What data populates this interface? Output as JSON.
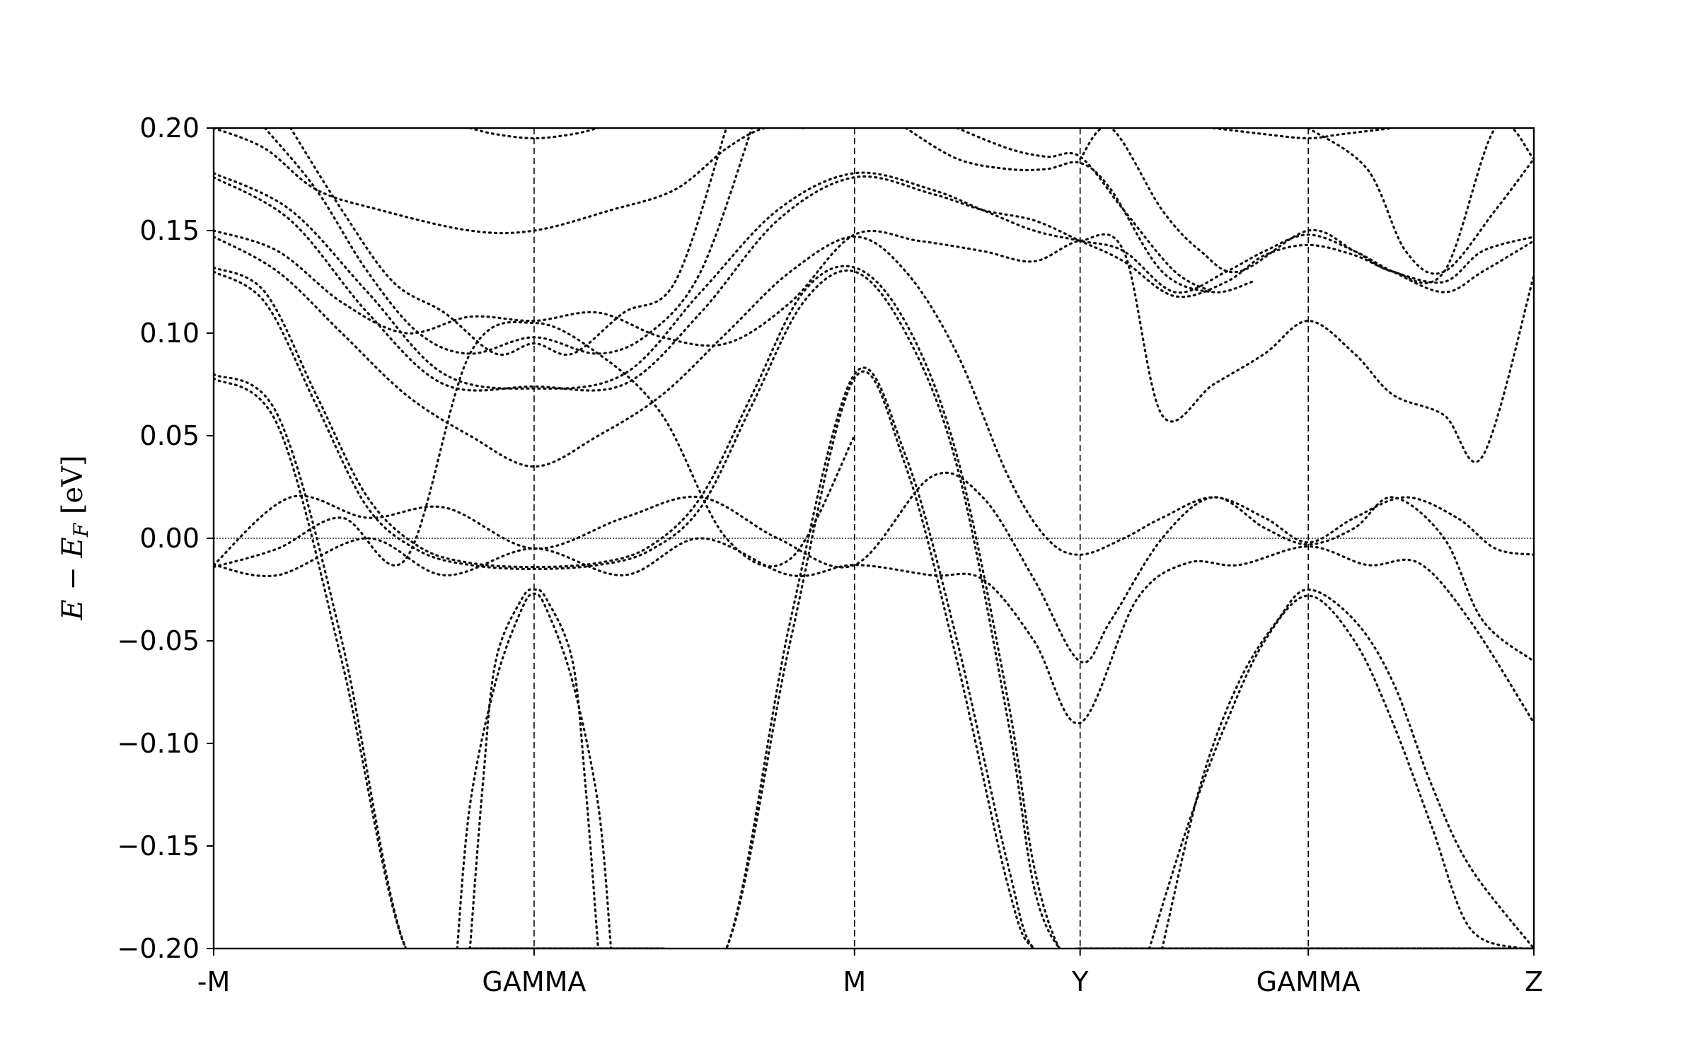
{
  "chart_data": {
    "type": "line",
    "title": "",
    "xlabel": "",
    "ylabel_parts": {
      "main": "E − E",
      "sub": "F",
      "unit": " [eV]"
    },
    "ylim": [
      -0.2,
      0.2
    ],
    "yticks": [
      -0.2,
      -0.15,
      -0.1,
      -0.05,
      0.0,
      0.05,
      0.1,
      0.15,
      0.2
    ],
    "ytick_labels": [
      "−0.20",
      "−0.15",
      "−0.10",
      "−0.05",
      "0.00",
      "0.05",
      "0.10",
      "0.15",
      "0.20"
    ],
    "xlim": [
      0,
      5.15
    ],
    "kpoints": [
      {
        "label": "-M",
        "x": 0.0
      },
      {
        "label": "GAMMA",
        "x": 1.25
      },
      {
        "label": "M",
        "x": 2.5
      },
      {
        "label": "Y",
        "x": 3.38
      },
      {
        "label": "GAMMA",
        "x": 4.27
      },
      {
        "label": "Z",
        "x": 5.15
      }
    ],
    "fermi_level": 0.0,
    "grid": false,
    "legend": "none",
    "line_style": "dotted",
    "line_color": "#111111",
    "series": [
      {
        "x": [
          0,
          0.25,
          0.5,
          0.75,
          1.0,
          1.25,
          1.5,
          1.75,
          2.0,
          2.25,
          2.5,
          2.7,
          2.9,
          3.1,
          3.2,
          3.38,
          3.6,
          3.8,
          4.0,
          4.27,
          4.5,
          4.7,
          4.9,
          5.15
        ],
        "y": [
          0.08,
          0.06,
          -0.05,
          -0.2,
          -0.2,
          -0.2,
          -0.2,
          -0.2,
          -0.2,
          -0.04,
          0.08,
          0.04,
          -0.05,
          -0.16,
          -0.2,
          -0.2,
          -0.2,
          -0.2,
          -0.2,
          -0.2,
          -0.2,
          -0.2,
          -0.2,
          -0.2
        ]
      },
      {
        "x": [
          0,
          0.25,
          0.5,
          0.75,
          1.0,
          1.25,
          1.5,
          1.75,
          2.0,
          2.25,
          2.5,
          2.7,
          2.9,
          3.1,
          3.2,
          3.38,
          3.6,
          3.8,
          4.0,
          4.27,
          4.5,
          4.7,
          4.9,
          5.15
        ],
        "y": [
          0.078,
          0.055,
          -0.06,
          -0.2,
          -0.2,
          -0.2,
          -0.2,
          -0.2,
          -0.2,
          -0.05,
          0.078,
          0.035,
          -0.06,
          -0.17,
          -0.2,
          -0.2,
          -0.2,
          -0.2,
          -0.2,
          -0.2,
          -0.2,
          -0.2,
          -0.2,
          -0.2
        ]
      },
      {
        "x": [
          0,
          0.2,
          0.4,
          0.6,
          0.8,
          1.0,
          1.25,
          1.5,
          1.7,
          1.9,
          2.1,
          2.3,
          2.5,
          2.7,
          2.9,
          3.1,
          3.2,
          3.3,
          3.38
        ],
        "y": [
          0.132,
          0.12,
          0.07,
          0.02,
          -0.004,
          -0.012,
          -0.014,
          -0.012,
          -0.004,
          0.02,
          0.07,
          0.12,
          0.132,
          0.105,
          0.04,
          -0.08,
          -0.16,
          -0.2,
          -0.2
        ]
      },
      {
        "x": [
          0,
          0.2,
          0.4,
          0.6,
          0.8,
          1.0,
          1.25,
          1.5,
          1.7,
          1.9,
          2.1,
          2.3,
          2.5,
          2.7,
          2.9,
          3.1,
          3.2,
          3.3,
          3.38
        ],
        "y": [
          0.13,
          0.115,
          0.065,
          0.015,
          -0.006,
          -0.013,
          -0.015,
          -0.013,
          -0.006,
          0.015,
          0.065,
          0.115,
          0.13,
          0.1,
          0.035,
          -0.09,
          -0.17,
          -0.2,
          -0.2
        ]
      },
      {
        "x": [
          0,
          0.25,
          0.6,
          0.9,
          1.25,
          1.6,
          1.9,
          2.25,
          2.5,
          2.8,
          3.0,
          3.2,
          3.38,
          3.6,
          3.8,
          4.0,
          4.27,
          4.5,
          4.7,
          4.9,
          5.15
        ],
        "y": [
          -0.013,
          -0.018,
          0.0,
          -0.018,
          -0.005,
          -0.018,
          0.0,
          -0.018,
          -0.013,
          -0.018,
          -0.02,
          -0.05,
          -0.09,
          -0.03,
          -0.012,
          -0.013,
          -0.004,
          -0.013,
          -0.012,
          -0.04,
          -0.09
        ]
      },
      {
        "x": [
          0,
          0.3,
          0.6,
          0.9,
          1.25,
          1.6,
          1.9,
          2.2,
          2.5,
          2.8,
          3.0,
          3.2,
          3.38,
          3.5,
          3.7,
          3.9,
          4.1,
          4.27,
          4.45,
          4.6,
          4.8,
          4.95,
          5.15
        ],
        "y": [
          -0.013,
          0.02,
          0.01,
          0.015,
          -0.005,
          0.01,
          0.02,
          0.0,
          -0.013,
          0.03,
          0.02,
          -0.02,
          -0.06,
          -0.04,
          0.0,
          0.02,
          0.005,
          -0.003,
          0.005,
          0.02,
          0.0,
          -0.04,
          -0.06
        ]
      },
      {
        "x": [
          0,
          0.25,
          0.5,
          0.75,
          1.0,
          1.25,
          1.5,
          1.75,
          2.0,
          2.25,
          2.5,
          2.7,
          2.9,
          3.1,
          3.25,
          3.38,
          3.55,
          3.7,
          3.9,
          4.1,
          4.27,
          4.45,
          4.65,
          4.85,
          5.0,
          5.15
        ],
        "y": [
          0.147,
          0.13,
          0.1,
          0.07,
          0.05,
          0.035,
          0.05,
          0.07,
          0.1,
          0.13,
          0.147,
          0.13,
          0.09,
          0.03,
          0.0,
          -0.008,
          0.0,
          0.01,
          0.02,
          0.01,
          -0.002,
          0.01,
          0.02,
          0.01,
          -0.005,
          -0.008
        ]
      },
      {
        "x": [
          0,
          0.25,
          0.5,
          0.75,
          1.0,
          1.25,
          1.5,
          1.75,
          2.0,
          2.25,
          2.5,
          2.75,
          3.0,
          3.2,
          3.38,
          3.55,
          3.7,
          3.9,
          4.1,
          4.27,
          4.45,
          4.6,
          4.8,
          4.95,
          5.15
        ],
        "y": [
          0.15,
          0.14,
          0.115,
          0.1,
          0.108,
          0.106,
          0.11,
          0.098,
          0.095,
          0.115,
          0.148,
          0.145,
          0.14,
          0.135,
          0.145,
          0.14,
          0.06,
          0.075,
          0.09,
          0.106,
          0.09,
          0.07,
          0.06,
          0.04,
          0.128
        ]
      },
      {
        "x": [
          0,
          0.3,
          0.6,
          0.9,
          1.25,
          1.6,
          1.9,
          2.2,
          2.5,
          2.8,
          3.0,
          3.2,
          3.38,
          3.55,
          3.75,
          3.95,
          4.1,
          4.27,
          4.45,
          4.6,
          4.8,
          4.95,
          5.15
        ],
        "y": [
          0.178,
          0.16,
          0.12,
          0.08,
          0.073,
          0.08,
          0.12,
          0.16,
          0.178,
          0.17,
          0.16,
          0.15,
          0.145,
          0.14,
          0.12,
          0.13,
          0.14,
          0.148,
          0.14,
          0.13,
          0.12,
          0.13,
          0.145
        ]
      },
      {
        "x": [
          0,
          0.3,
          0.6,
          0.9,
          1.25,
          1.6,
          1.9,
          2.2,
          2.5,
          2.8,
          3.0,
          3.2,
          3.38,
          3.55,
          3.75,
          3.95,
          4.1,
          4.27,
          4.45,
          4.6,
          4.8,
          4.95,
          5.15
        ],
        "y": [
          0.176,
          0.155,
          0.11,
          0.075,
          0.074,
          0.075,
          0.11,
          0.155,
          0.176,
          0.168,
          0.16,
          0.155,
          0.145,
          0.135,
          0.118,
          0.125,
          0.138,
          0.143,
          0.138,
          0.13,
          0.125,
          0.14,
          0.147
        ]
      },
      {
        "x": [
          0,
          0.2,
          0.4,
          0.65,
          1.0,
          1.25,
          1.55,
          1.8,
          2.0,
          2.15,
          2.3
        ],
        "y": [
          0.2,
          0.19,
          0.17,
          0.16,
          0.15,
          0.15,
          0.16,
          0.17,
          0.19,
          0.2,
          0.2
        ]
      },
      {
        "x": [
          0.2,
          0.4,
          0.6,
          0.8,
          1.0,
          1.25,
          1.5,
          1.7,
          1.9,
          2.1
        ],
        "y": [
          0.2,
          0.17,
          0.13,
          0.1,
          0.09,
          0.098,
          0.09,
          0.1,
          0.13,
          0.2
        ]
      },
      {
        "x": [
          0.3,
          0.5,
          0.7,
          0.9,
          1.1,
          1.25,
          1.4,
          1.6,
          1.8,
          2.0
        ],
        "y": [
          0.2,
          0.16,
          0.125,
          0.11,
          0.09,
          0.095,
          0.09,
          0.11,
          0.125,
          0.2
        ]
      },
      {
        "x": [
          0,
          0.25,
          0.5,
          0.75,
          1.0,
          1.25,
          1.5,
          1.75,
          2.0,
          2.25,
          2.5
        ],
        "y": [
          -0.014,
          -0.005,
          0.01,
          -0.01,
          0.09,
          0.105,
          0.09,
          0.06,
          0.0,
          -0.01,
          0.05
        ]
      },
      {
        "x": [
          1.0,
          1.1,
          1.25,
          1.4,
          1.5
        ],
        "y": [
          0.2,
          0.197,
          0.195,
          0.197,
          0.2
        ]
      },
      {
        "x": [
          3.9,
          4.1,
          4.27,
          4.4,
          4.6
        ],
        "y": [
          0.2,
          0.197,
          0.195,
          0.197,
          0.2
        ]
      },
      {
        "x": [
          2.7,
          2.9,
          3.1,
          3.25,
          3.38,
          3.5,
          3.7,
          3.9,
          4.05
        ],
        "y": [
          0.2,
          0.185,
          0.18,
          0.18,
          0.183,
          0.17,
          0.13,
          0.12,
          0.125
        ]
      },
      {
        "x": [
          2.9,
          3.1,
          3.25,
          3.38,
          3.55,
          3.75,
          3.9
        ],
        "y": [
          0.2,
          0.19,
          0.186,
          0.186,
          0.16,
          0.13,
          0.12
        ]
      },
      {
        "x": [
          3.38,
          3.5,
          3.7,
          3.85,
          4.0,
          4.27,
          4.45,
          4.6,
          4.8,
          5.0,
          5.15
        ],
        "y": [
          0.185,
          0.2,
          0.16,
          0.14,
          0.13,
          0.15,
          0.14,
          0.13,
          0.13,
          0.2,
          0.185
        ]
      },
      {
        "x": [
          4.27,
          4.5,
          4.65,
          4.8,
          5.0,
          5.15
        ],
        "y": [
          0.2,
          0.18,
          0.14,
          0.13,
          0.16,
          0.185
        ]
      },
      {
        "x": [
          3.7,
          3.85,
          4.0,
          4.15,
          4.27,
          4.45,
          4.6,
          4.75,
          4.9,
          5.15
        ],
        "y": [
          -0.2,
          -0.12,
          -0.07,
          -0.04,
          -0.025,
          -0.04,
          -0.07,
          -0.12,
          -0.16,
          -0.2
        ]
      },
      {
        "x": [
          3.65,
          3.8,
          3.95,
          4.1,
          4.27,
          4.45,
          4.6,
          4.75,
          4.9,
          5.1
        ],
        "y": [
          -0.2,
          -0.14,
          -0.09,
          -0.05,
          -0.028,
          -0.05,
          -0.09,
          -0.14,
          -0.19,
          -0.2
        ]
      },
      {
        "x": [
          1.0,
          1.05,
          1.1,
          1.2,
          1.25,
          1.3,
          1.4,
          1.45,
          1.5
        ],
        "y": [
          -0.2,
          -0.12,
          -0.06,
          -0.03,
          -0.025,
          -0.03,
          -0.06,
          -0.12,
          -0.2
        ]
      },
      {
        "x": [
          0.95,
          1.0,
          1.1,
          1.2,
          1.25,
          1.3,
          1.4,
          1.5,
          1.55
        ],
        "y": [
          -0.2,
          -0.13,
          -0.07,
          -0.035,
          -0.027,
          -0.035,
          -0.07,
          -0.13,
          -0.2
        ]
      }
    ]
  }
}
